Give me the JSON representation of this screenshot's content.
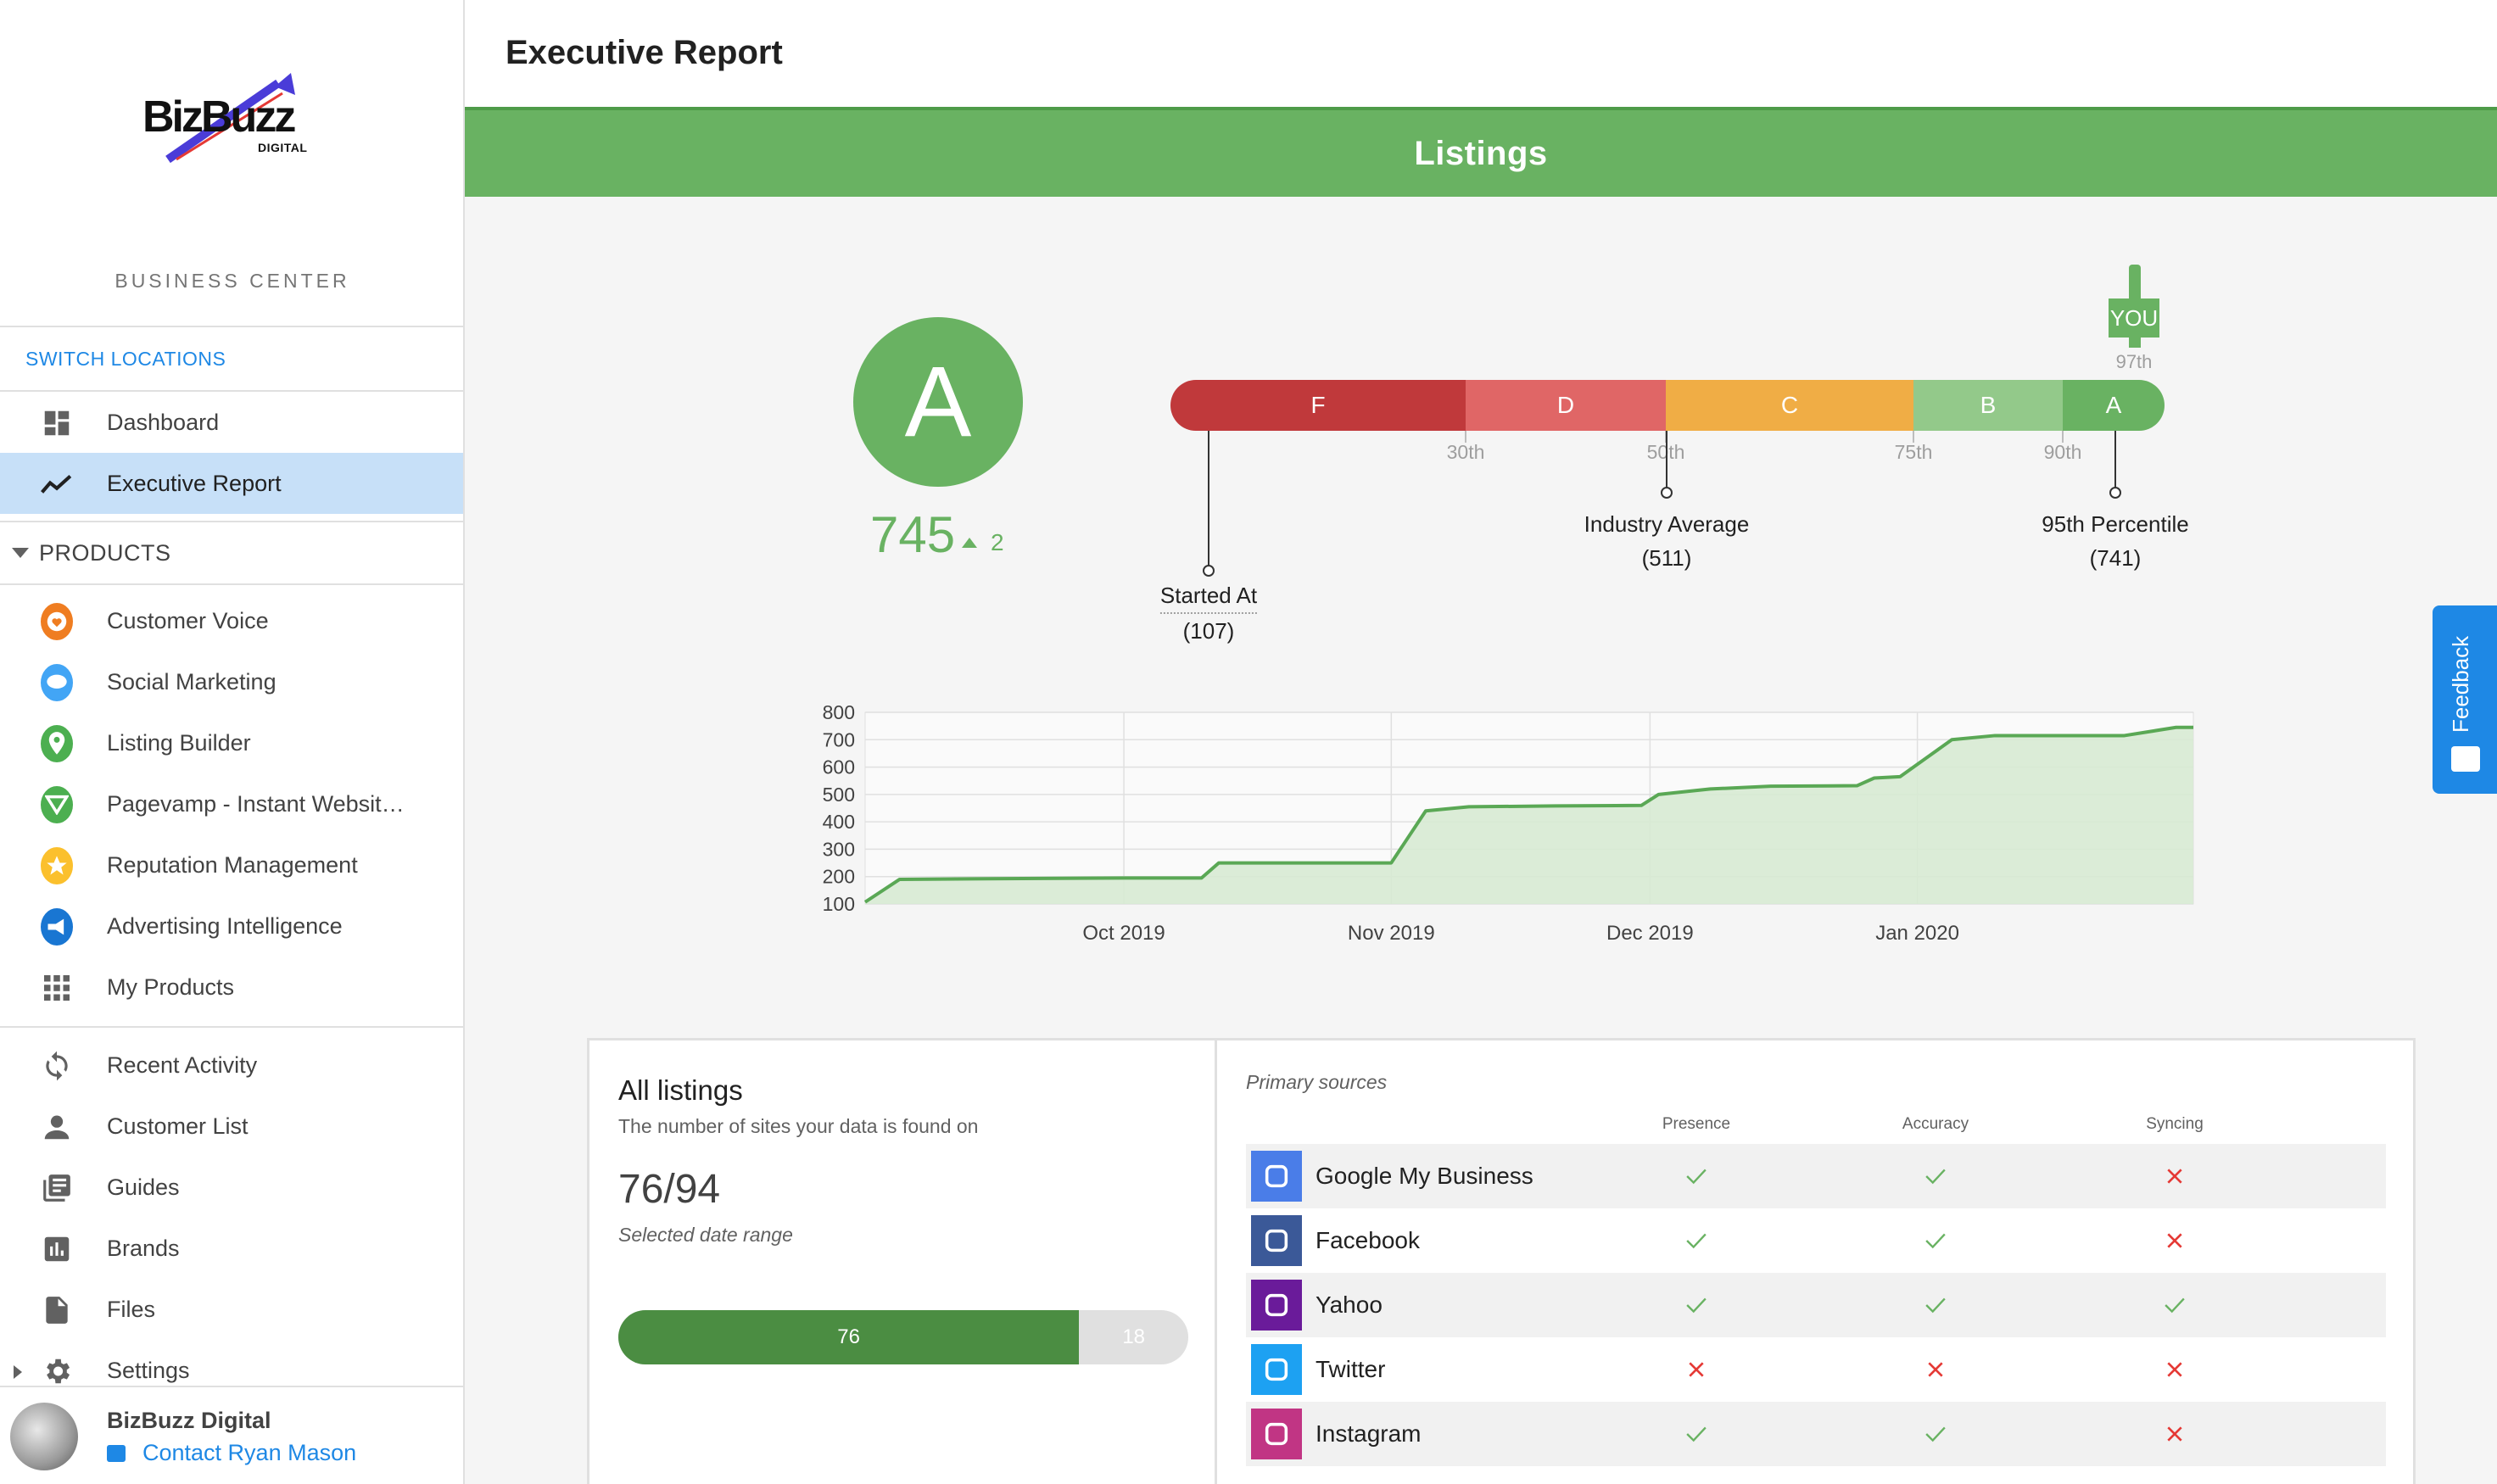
{
  "sidebar": {
    "logo_text": "BizBuzz",
    "logo_sub": "DIGITAL",
    "section_title": "BUSINESS CENTER",
    "switch_locations": "SWITCH LOCATIONS",
    "top_items": [
      {
        "label": "Dashboard",
        "icon": "dashboard-icon"
      },
      {
        "label": "Executive Report",
        "icon": "trend-line-icon",
        "active": true
      }
    ],
    "products_header": "PRODUCTS",
    "products": [
      {
        "label": "Customer Voice",
        "icon": "customer-voice-icon",
        "color": "#ef7d21"
      },
      {
        "label": "Social Marketing",
        "icon": "social-marketing-icon",
        "color": "#42a5f5"
      },
      {
        "label": "Listing Builder",
        "icon": "listing-builder-icon",
        "color": "#4caf50"
      },
      {
        "label": "Pagevamp - Instant Websit…",
        "icon": "pagevamp-icon",
        "color": "#4caf50"
      },
      {
        "label": "Reputation Management",
        "icon": "reputation-icon",
        "color": "#fbc02d"
      },
      {
        "label": "Advertising Intelligence",
        "icon": "advertising-icon",
        "color": "#1976d2"
      },
      {
        "label": "My Products",
        "icon": "grid-icon",
        "color": "#616161"
      }
    ],
    "bottom_items": [
      {
        "label": "Recent Activity",
        "icon": "refresh-icon"
      },
      {
        "label": "Customer List",
        "icon": "person-icon"
      },
      {
        "label": "Guides",
        "icon": "guides-icon"
      },
      {
        "label": "Brands",
        "icon": "bar-chart-icon"
      },
      {
        "label": "Files",
        "icon": "file-icon"
      },
      {
        "label": "Settings",
        "icon": "gear-icon"
      }
    ],
    "user": {
      "name": "BizBuzz Digital",
      "contact": "Contact Ryan Mason"
    }
  },
  "header": {
    "title": "Executive Report"
  },
  "banner": {
    "title": "Listings"
  },
  "grade": {
    "letter": "A",
    "score": "745",
    "change": "2",
    "bands": [
      {
        "label": "F",
        "color": "#c0393b"
      },
      {
        "label": "D",
        "color": "#e06666"
      },
      {
        "label": "C",
        "color": "#f0ad45"
      },
      {
        "label": "B",
        "color": "#93c98a"
      },
      {
        "label": "A",
        "color": "#69b262"
      }
    ],
    "percentile_ticks": [
      "30th",
      "50th",
      "75th",
      "90th"
    ],
    "you_label": "YOU",
    "you_percentile": "97th",
    "markers": [
      {
        "title": "Started At",
        "value": "(107)"
      },
      {
        "title": "Industry Average",
        "value": "(511)"
      },
      {
        "title": "95th Percentile",
        "value": "(741)"
      }
    ]
  },
  "chart_data": {
    "type": "area",
    "x": [
      "2019-09-01",
      "2019-09-05",
      "2019-09-15",
      "2019-10-01",
      "2019-10-10",
      "2019-10-12",
      "2019-10-31",
      "2019-11-01",
      "2019-11-05",
      "2019-11-10",
      "2019-11-20",
      "2019-11-30",
      "2019-12-02",
      "2019-12-05",
      "2019-12-08",
      "2019-12-15",
      "2019-12-25",
      "2019-12-27",
      "2019-12-30",
      "2020-01-05",
      "2020-01-10",
      "2020-01-25",
      "2020-01-31",
      "2020-02-02"
    ],
    "series": [
      {
        "values": [
          107,
          190,
          192,
          195,
          195,
          250,
          250,
          250,
          440,
          455,
          458,
          460,
          500,
          510,
          520,
          530,
          532,
          560,
          565,
          700,
          715,
          715,
          745,
          745
        ]
      }
    ],
    "x_ticks": [
      "Oct 2019",
      "Nov 2019",
      "Dec 2019",
      "Jan 2020"
    ],
    "y_ticks": [
      100,
      200,
      300,
      400,
      500,
      600,
      700,
      800
    ],
    "ylim": [
      100,
      800
    ],
    "grid": true,
    "color": "#5aa855"
  },
  "all_listings": {
    "title": "All listings",
    "subtitle": "The number of sites your data is found on",
    "count": "76/94",
    "range_label": "Selected date range",
    "found": 76,
    "missing": 18,
    "found_label": "76",
    "missing_label": "18"
  },
  "primary_sources": {
    "title": "Primary sources",
    "columns": [
      "Presence",
      "Accuracy",
      "Syncing"
    ],
    "rows": [
      {
        "name": "Google My Business",
        "icon": "google-my-business-icon",
        "color": "#4a7de8",
        "presence": true,
        "accuracy": true,
        "syncing": false
      },
      {
        "name": "Facebook",
        "icon": "facebook-icon",
        "color": "#3b5998",
        "presence": true,
        "accuracy": true,
        "syncing": false
      },
      {
        "name": "Yahoo",
        "icon": "yahoo-icon",
        "color": "#6a1b9a",
        "presence": true,
        "accuracy": true,
        "syncing": true
      },
      {
        "name": "Twitter",
        "icon": "twitter-icon",
        "color": "#1da1f2",
        "presence": false,
        "accuracy": false,
        "syncing": false
      },
      {
        "name": "Instagram",
        "icon": "instagram-icon",
        "color": "#c13584",
        "presence": true,
        "accuracy": true,
        "syncing": false
      }
    ]
  },
  "feedback": {
    "label": "Feedback"
  }
}
